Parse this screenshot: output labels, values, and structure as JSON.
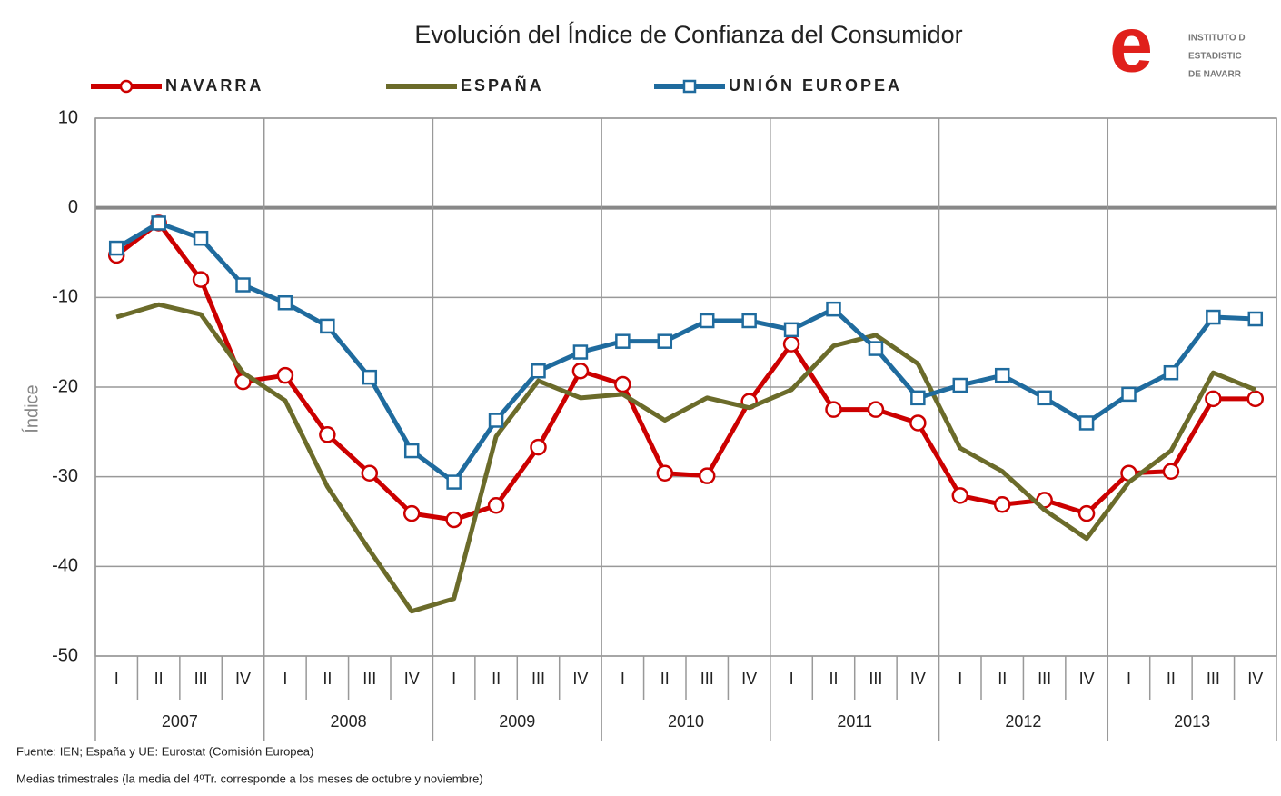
{
  "chart_data": {
    "type": "line",
    "title": "Evolución del Índice de Confianza del Consumidor",
    "y_label": "Índice",
    "categories": [
      "I",
      "II",
      "III",
      "IV",
      "I",
      "II",
      "III",
      "IV",
      "I",
      "II",
      "III",
      "IV",
      "I",
      "II",
      "III",
      "IV",
      "I",
      "II",
      "III",
      "IV",
      "I",
      "II",
      "III",
      "IV",
      "I",
      "II",
      "III",
      "IV"
    ],
    "years": [
      "2007",
      "2008",
      "2009",
      "2010",
      "2011",
      "2012",
      "2013"
    ],
    "ylim": [
      -50,
      10
    ],
    "yticks": [
      -50,
      -40,
      -30,
      -20,
      -10,
      0,
      10
    ],
    "grid": true,
    "series": [
      {
        "name": "NAVARRA",
        "color": "#cc0000",
        "marker": "circle",
        "values": [
          -5.3,
          -1.7,
          -8.0,
          -19.4,
          -18.7,
          -25.3,
          -29.6,
          -34.1,
          -34.8,
          -33.2,
          -26.7,
          -18.2,
          -19.7,
          -29.6,
          -29.9,
          -21.6,
          -15.2,
          -22.5,
          -22.5,
          -24.0,
          -32.1,
          -33.1,
          -32.6,
          -34.1,
          -29.6,
          -29.4,
          -21.3,
          -21.3
        ]
      },
      {
        "name": "ESPAÑA",
        "color": "#6b6b2a",
        "marker": "none",
        "values": [
          -12.2,
          -10.8,
          -11.9,
          -18.4,
          -21.5,
          -31.1,
          -38.2,
          -45.0,
          -43.6,
          -25.5,
          -19.3,
          -21.2,
          -20.8,
          -23.7,
          -21.2,
          -22.3,
          -20.3,
          -15.4,
          -14.2,
          -17.4,
          -26.8,
          -29.4,
          -33.7,
          -36.9,
          -30.6,
          -27.1,
          -18.4,
          -20.3
        ]
      },
      {
        "name": "UNIÓN EUROPEA",
        "color": "#1f6b9e",
        "marker": "square",
        "values": [
          -4.5,
          -1.7,
          -3.4,
          -8.6,
          -10.6,
          -13.2,
          -18.9,
          -27.1,
          -30.6,
          -23.7,
          -18.2,
          -16.1,
          -14.9,
          -14.9,
          -12.6,
          -12.6,
          -13.6,
          -11.3,
          -15.7,
          -21.2,
          -19.8,
          -18.7,
          -21.2,
          -24.0,
          -20.8,
          -18.4,
          -12.2,
          -12.4
        ]
      }
    ],
    "notes": [
      "Fuente: IEN; España y UE: Eurostat (Comisión Europea)",
      "Medias trimestrales (la media del 4ºTr. corresponde a los meses de octubre y noviembre)"
    ]
  },
  "logo": {
    "letter": "e",
    "lines": [
      "INSTITUTO D",
      "ESTADISTIC",
      "DE NAVARR"
    ]
  }
}
